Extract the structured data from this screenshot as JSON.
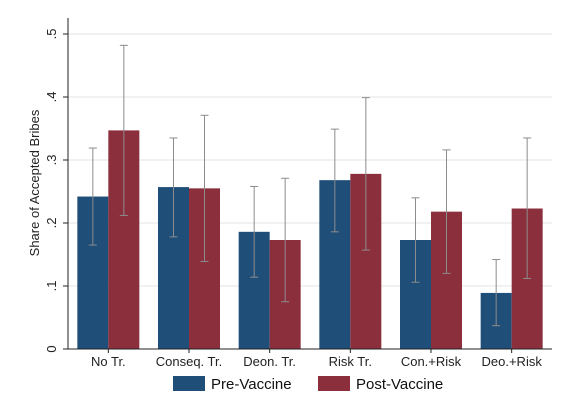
{
  "chart_data": {
    "type": "bar",
    "title": "",
    "xlabel": "",
    "ylabel": "Share of Accepted Bribes",
    "ylim": [
      0,
      0.5
    ],
    "yticks": [
      0,
      0.1,
      0.2,
      0.3,
      0.4,
      0.5
    ],
    "ytick_labels": [
      "0",
      ".1",
      ".2",
      ".3",
      ".4",
      ".5"
    ],
    "grid": true,
    "legend_position": "bottom",
    "categories": [
      "No Tr.",
      "Conseq. Tr.",
      "Deon. Tr.",
      "Risk Tr.",
      "Con.+Risk",
      "Deo.+Risk"
    ],
    "series": [
      {
        "name": "Pre-Vaccine",
        "color": "#1f4e79",
        "values": [
          0.242,
          0.257,
          0.186,
          0.268,
          0.173,
          0.089
        ],
        "ci_low": [
          0.165,
          0.178,
          0.114,
          0.186,
          0.106,
          0.037
        ],
        "ci_high": [
          0.319,
          0.335,
          0.258,
          0.349,
          0.24,
          0.142
        ]
      },
      {
        "name": "Post-Vaccine",
        "color": "#8b2f3d",
        "values": [
          0.347,
          0.255,
          0.173,
          0.278,
          0.218,
          0.223
        ],
        "ci_low": [
          0.212,
          0.139,
          0.075,
          0.157,
          0.12,
          0.112
        ],
        "ci_high": [
          0.482,
          0.371,
          0.271,
          0.399,
          0.316,
          0.335
        ]
      }
    ]
  }
}
